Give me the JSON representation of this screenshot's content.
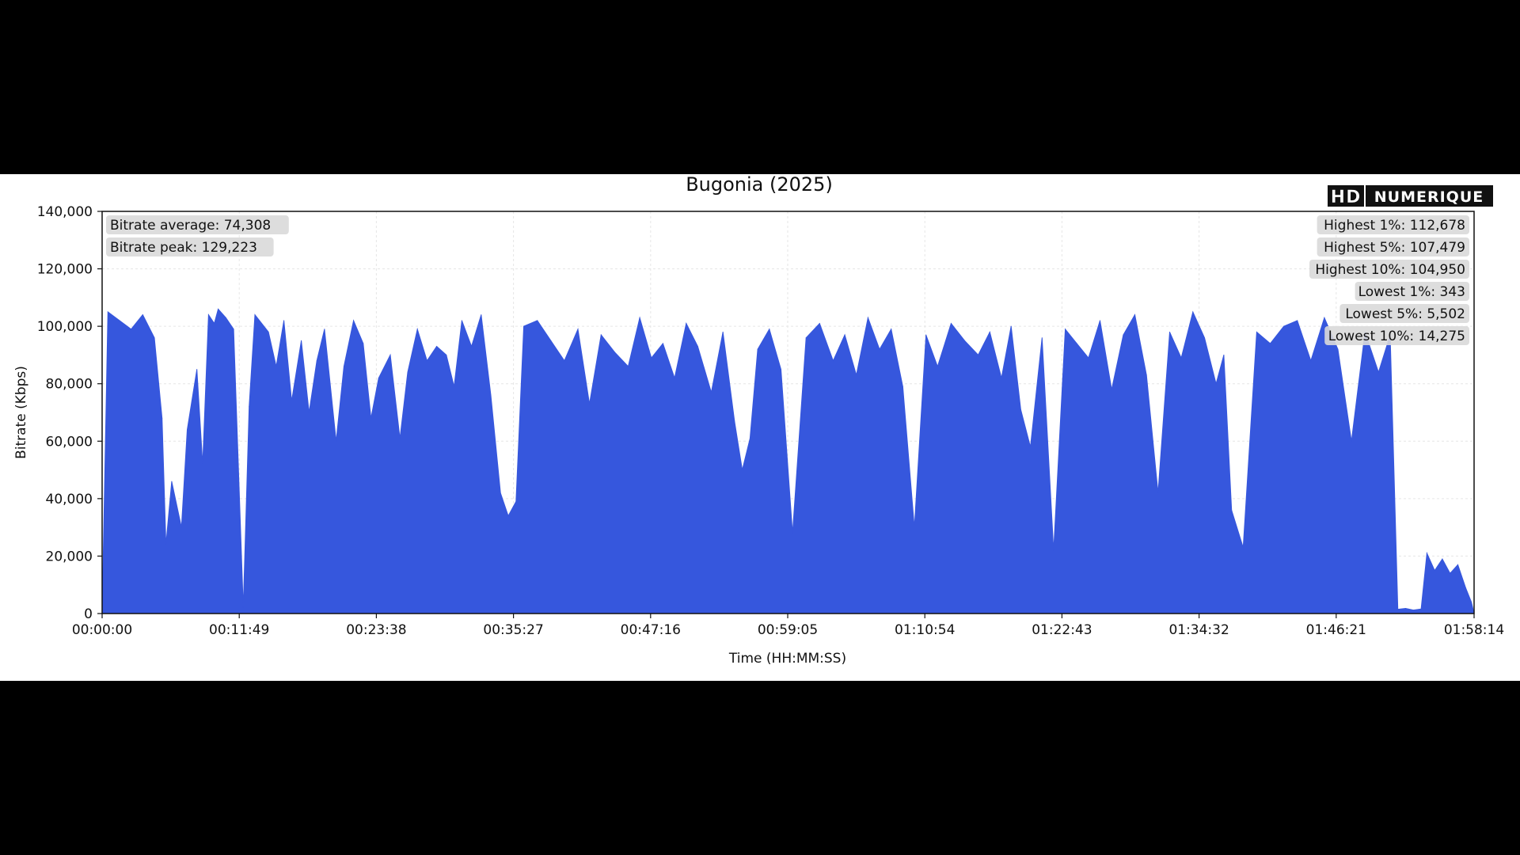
{
  "logo": {
    "part1": "HD",
    "part2": "NUMERIQUE"
  },
  "chart_data": {
    "type": "area",
    "title": "Bugonia (2025)",
    "xlabel": "Time (HH:MM:SS)",
    "ylabel": "Bitrate (Kbps)",
    "ylim": [
      0,
      140000
    ],
    "xlim_seconds": [
      0,
      7094
    ],
    "grid": true,
    "color": "#3657dd",
    "x_ticks": [
      "00:00:00",
      "00:11:49",
      "00:23:38",
      "00:35:27",
      "00:47:16",
      "00:59:05",
      "01:10:54",
      "01:22:43",
      "01:34:32",
      "01:46:21",
      "01:58:14"
    ],
    "y_ticks": [
      "0",
      "20,000",
      "40,000",
      "60,000",
      "80,000",
      "100,000",
      "120,000",
      "140,000"
    ],
    "stats_left": [
      "Bitrate average: 74,308",
      "Bitrate peak: 129,223"
    ],
    "stats_right": [
      "Highest 1%: 112,678",
      "Highest 5%: 107,479",
      "Highest 10%: 104,950",
      "Lowest 1%: 343",
      "Lowest 5%: 5,502",
      "Lowest 10%: 14,275"
    ],
    "series": [
      {
        "x": [
          "00:00:00",
          "00:00:30",
          "00:01:30",
          "00:02:30",
          "00:03:30",
          "00:04:30",
          "00:05:10",
          "00:05:30",
          "00:06:00",
          "00:06:50",
          "00:07:20",
          "00:08:10",
          "00:08:40",
          "00:09:10",
          "00:09:40",
          "00:10:00",
          "00:10:40",
          "00:11:20",
          "00:12:10",
          "00:12:40",
          "00:13:10",
          "00:14:20",
          "00:15:00",
          "00:15:40",
          "00:16:20",
          "00:17:10",
          "00:17:50",
          "00:18:30",
          "00:19:10",
          "00:20:10",
          "00:20:50",
          "00:21:40",
          "00:22:30",
          "00:23:10",
          "00:23:50",
          "00:24:50",
          "00:25:40",
          "00:26:20",
          "00:27:10",
          "00:28:00",
          "00:28:50",
          "00:29:40",
          "00:30:20",
          "00:31:00",
          "00:31:50",
          "00:32:40",
          "00:33:30",
          "00:34:20",
          "00:35:00",
          "00:35:40",
          "00:36:20",
          "00:37:30",
          "00:38:40",
          "00:39:50",
          "00:41:00",
          "00:42:00",
          "00:43:00",
          "00:44:10",
          "00:45:20",
          "00:46:20",
          "00:47:20",
          "00:48:20",
          "00:49:20",
          "00:50:20",
          "00:51:20",
          "00:52:30",
          "00:53:30",
          "00:54:30",
          "00:55:10",
          "00:55:50",
          "00:56:30",
          "00:57:30",
          "00:58:30",
          "00:59:30",
          "01:00:40",
          "01:01:50",
          "01:03:00",
          "01:04:00",
          "01:05:00",
          "01:06:00",
          "01:07:00",
          "01:08:00",
          "01:09:00",
          "01:10:00",
          "01:11:00",
          "01:12:00",
          "01:13:10",
          "01:14:20",
          "01:15:30",
          "01:16:30",
          "01:17:30",
          "01:18:20",
          "01:19:10",
          "01:20:00",
          "01:21:00",
          "01:22:00",
          "01:23:00",
          "01:24:00",
          "01:25:00",
          "01:26:00",
          "01:27:00",
          "01:28:00",
          "01:29:00",
          "01:30:00",
          "01:31:00",
          "01:32:00",
          "01:33:00",
          "01:34:00",
          "01:35:00",
          "01:36:00",
          "01:36:40",
          "01:37:20",
          "01:38:20",
          "01:39:30",
          "01:40:40",
          "01:41:50",
          "01:43:00",
          "01:44:10",
          "01:45:20",
          "01:46:30",
          "01:47:40",
          "01:48:50",
          "01:50:00",
          "01:51:00",
          "01:51:40",
          "01:52:20",
          "01:53:00",
          "01:53:40",
          "01:54:10",
          "01:54:50",
          "01:55:30",
          "01:56:10",
          "01:56:50",
          "01:57:30",
          "01:58:00",
          "01:58:14"
        ],
        "y": [
          0,
          105000,
          102000,
          99000,
          104000,
          96000,
          68000,
          24000,
          46000,
          30000,
          64000,
          85000,
          52000,
          104000,
          101000,
          106000,
          103000,
          99000,
          2000,
          72000,
          104000,
          98000,
          86000,
          102000,
          74000,
          95000,
          70000,
          88000,
          99000,
          60000,
          86000,
          102000,
          94000,
          68000,
          82000,
          90000,
          61000,
          84000,
          99000,
          88000,
          93000,
          90000,
          79000,
          102000,
          93000,
          104000,
          76000,
          42000,
          34000,
          39000,
          100000,
          102000,
          95000,
          88000,
          99000,
          73000,
          97000,
          91000,
          86000,
          103000,
          89000,
          94000,
          82000,
          101000,
          93000,
          77000,
          98000,
          67000,
          50000,
          61000,
          92000,
          99000,
          85000,
          28000,
          96000,
          101000,
          88000,
          97000,
          83000,
          103000,
          92000,
          99000,
          79000,
          30000,
          97000,
          86000,
          101000,
          95000,
          90000,
          98000,
          82000,
          100000,
          71000,
          58000,
          96000,
          22000,
          99000,
          94000,
          89000,
          102000,
          78000,
          97000,
          104000,
          83000,
          42000,
          98000,
          89000,
          105000,
          96000,
          80000,
          90000,
          36000,
          23000,
          98000,
          94000,
          100000,
          102000,
          88000,
          103000,
          92000,
          60000,
          98000,
          84000,
          97000,
          1500,
          1800,
          1200,
          1600,
          21000,
          15000,
          19000,
          14000,
          17000,
          9000,
          4000,
          0
        ]
      }
    ]
  }
}
